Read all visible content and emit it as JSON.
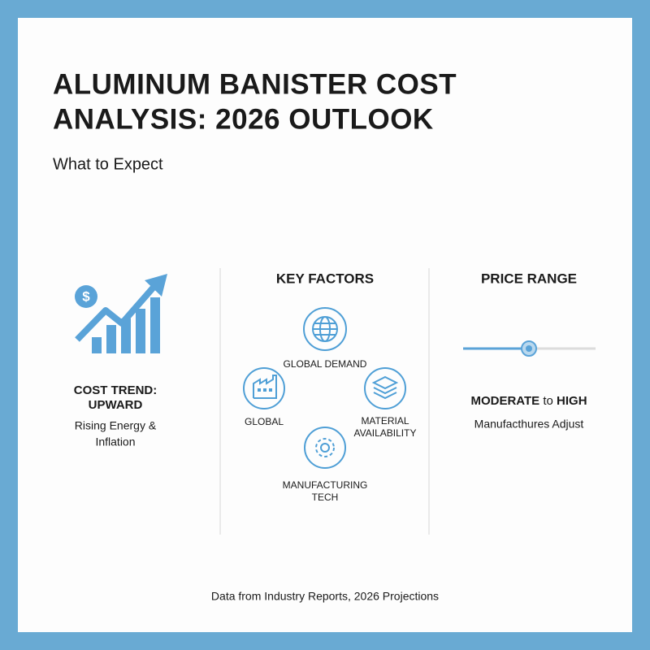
{
  "header": {
    "title_lines": [
      "ALUMINUM BANISTER COST",
      "ANALYSIS: 2026 OUTLOOK"
    ],
    "subtitle": "What to Expect"
  },
  "cost_trend": {
    "heading_lines": [
      "COST TREND:",
      "UPWARD"
    ],
    "description_lines": [
      "Rising Energy &",
      "Inflation"
    ]
  },
  "key_factors": {
    "heading": "KEY FACTORS",
    "factors": [
      {
        "label_lines": [
          "GLOBAL DEMAND"
        ]
      },
      {
        "label_lines": [
          "GLOBAL"
        ]
      },
      {
        "label_lines": [
          "MATERIAL",
          "AVAILABILITY"
        ]
      },
      {
        "label_lines": [
          "MANUFACTURING",
          "TECH"
        ]
      }
    ]
  },
  "price_range": {
    "heading": "PRICE RANGE",
    "level": {
      "from": "MODERATE",
      "connector": "to",
      "to": "HIGH"
    },
    "note": "Manufacthures Adjust"
  },
  "footer": "Data from Industry Reports, 2026 Projections"
}
